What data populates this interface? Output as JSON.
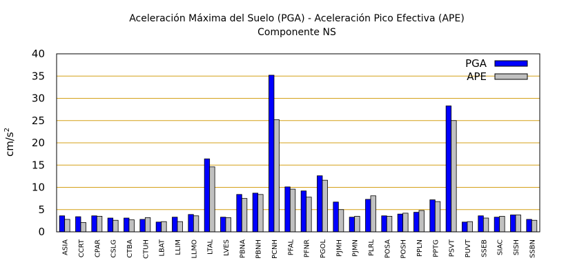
{
  "chart_data": {
    "type": "bar",
    "title": "Aceleración Máxima del Suelo (PGA) -  Aceleración Pico Efectiva (APE)",
    "subtitle": "Componente NS",
    "ylabel": "cm/s",
    "ylabel_sup": "2",
    "xlabel": "",
    "ylim": [
      0,
      40
    ],
    "yticks": [
      0,
      5,
      10,
      15,
      20,
      25,
      30,
      35,
      40
    ],
    "grid": true,
    "legend_position": "top-right",
    "categories": [
      "ASIA",
      "CCRT",
      "CPAR",
      "CSLG",
      "CTBA",
      "CTUH",
      "LBAT",
      "LLIM",
      "LLMO",
      "LTAL",
      "LVES",
      "PBNA",
      "PBNH",
      "PCNH",
      "PFAL",
      "PFNR",
      "PGOL",
      "PJMH",
      "PJMN",
      "PLRL",
      "POSA",
      "POSH",
      "PPLN",
      "PPTG",
      "PSVT",
      "PUVT",
      "SSEB",
      "SIAC",
      "SISH",
      "SSBN"
    ],
    "series": [
      {
        "name": "PGA",
        "color": "#0000ff",
        "values": [
          3.6,
          3.4,
          3.6,
          3.1,
          3.1,
          2.8,
          2.2,
          3.3,
          3.9,
          16.4,
          3.3,
          8.4,
          8.7,
          35.2,
          10.1,
          9.2,
          12.6,
          6.7,
          3.3,
          7.3,
          3.6,
          4.0,
          4.4,
          7.2,
          28.3,
          2.2,
          3.6,
          3.3,
          3.8,
          2.8
        ]
      },
      {
        "name": "APE",
        "color": "#c0c0c0",
        "values": [
          2.8,
          2.1,
          3.5,
          2.6,
          2.7,
          3.2,
          2.3,
          2.3,
          3.6,
          14.6,
          3.2,
          7.5,
          8.4,
          25.2,
          9.6,
          7.8,
          11.6,
          5.0,
          3.5,
          8.1,
          3.5,
          4.2,
          4.8,
          6.8,
          25.0,
          2.3,
          3.1,
          3.5,
          3.8,
          2.6
        ]
      }
    ]
  }
}
